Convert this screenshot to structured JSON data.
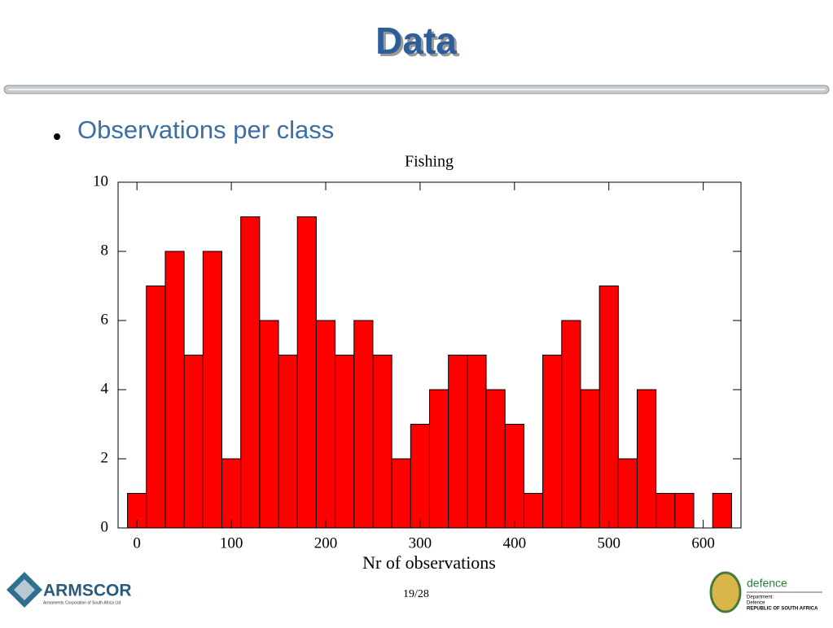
{
  "slide": {
    "title": "Data",
    "bullet": "Observations per class",
    "page": "19/28",
    "logo_left": {
      "name": "ARMSCOR",
      "subtitle": "Armaments Corporation of South Africa Ltd"
    },
    "logo_right": {
      "name": "defence",
      "line1": "Department:",
      "line2": "Defence",
      "line3": "REPUBLIC OF SOUTH AFRICA"
    }
  },
  "chart_data": {
    "type": "histogram",
    "title": "Fishing",
    "x_label": "Nr of observations",
    "bins": [
      -10,
      10,
      30,
      50,
      70,
      90,
      110,
      130,
      150,
      170,
      190,
      210,
      230,
      250,
      270,
      290,
      310,
      330,
      350,
      370,
      390,
      410,
      430,
      450,
      470,
      490,
      510,
      530,
      550,
      570,
      590,
      610,
      630
    ],
    "counts": [
      1,
      7,
      8,
      5,
      8,
      2,
      9,
      6,
      5,
      9,
      6,
      5,
      6,
      5,
      2,
      3,
      4,
      5,
      5,
      4,
      3,
      1,
      5,
      6,
      4,
      7,
      2,
      4,
      1,
      1,
      0,
      1
    ],
    "color": "#ff0000",
    "xlim": [
      -20,
      640
    ],
    "xticks": [
      0,
      100,
      200,
      300,
      400,
      500,
      600
    ],
    "ylim": [
      0,
      10
    ],
    "yticks": [
      0,
      2,
      4,
      6,
      8,
      10
    ]
  }
}
